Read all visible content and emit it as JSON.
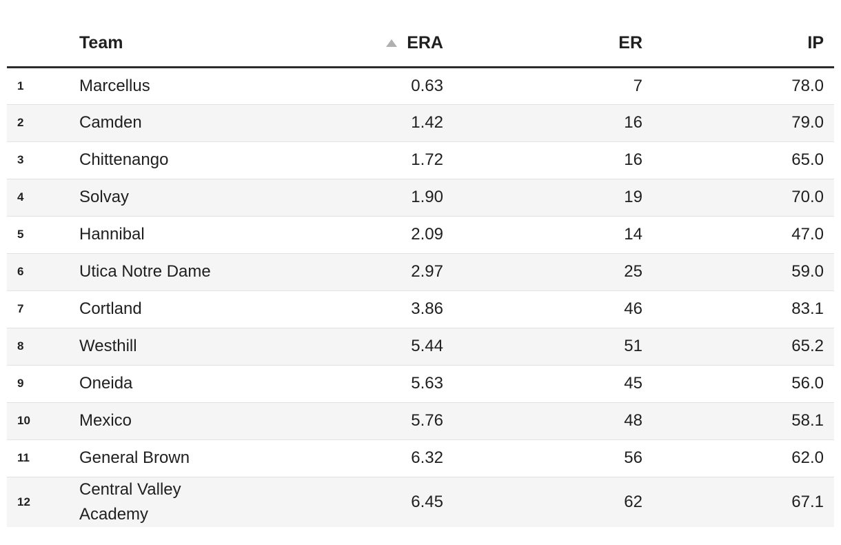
{
  "table": {
    "columns": {
      "rank": {
        "label": ""
      },
      "team": {
        "label": "Team"
      },
      "era": {
        "label": "ERA",
        "sorted": "ascending"
      },
      "er": {
        "label": "ER"
      },
      "ip": {
        "label": "IP"
      }
    },
    "rows": [
      {
        "rank": "1",
        "team": "Marcellus",
        "era": "0.63",
        "er": "7",
        "ip": "78.0"
      },
      {
        "rank": "2",
        "team": "Camden",
        "era": "1.42",
        "er": "16",
        "ip": "79.0"
      },
      {
        "rank": "3",
        "team": "Chittenango",
        "era": "1.72",
        "er": "16",
        "ip": "65.0"
      },
      {
        "rank": "4",
        "team": "Solvay",
        "era": "1.90",
        "er": "19",
        "ip": "70.0"
      },
      {
        "rank": "5",
        "team": "Hannibal",
        "era": "2.09",
        "er": "14",
        "ip": "47.0"
      },
      {
        "rank": "6",
        "team": "Utica Notre Dame",
        "era": "2.97",
        "er": "25",
        "ip": "59.0"
      },
      {
        "rank": "7",
        "team": "Cortland",
        "era": "3.86",
        "er": "46",
        "ip": "83.1"
      },
      {
        "rank": "8",
        "team": "Westhill",
        "era": "5.44",
        "er": "51",
        "ip": "65.2"
      },
      {
        "rank": "9",
        "team": "Oneida",
        "era": "5.63",
        "er": "45",
        "ip": "56.0"
      },
      {
        "rank": "10",
        "team": "Mexico",
        "era": "5.76",
        "er": "48",
        "ip": "58.1"
      },
      {
        "rank": "11",
        "team": "General Brown",
        "era": "6.32",
        "er": "56",
        "ip": "62.0"
      },
      {
        "rank": "12",
        "team": "Central Valley Academy",
        "era": "6.45",
        "er": "62",
        "ip": "67.1"
      }
    ]
  },
  "icons": {
    "era_sort": "sort-ascending-triangle"
  },
  "colors": {
    "text": "#1f1f1f",
    "stripe": "#f5f5f5",
    "row_border": "#e2e2e2",
    "header_border": "#2b2b2b",
    "sort_icon": "#b0b0b0"
  }
}
